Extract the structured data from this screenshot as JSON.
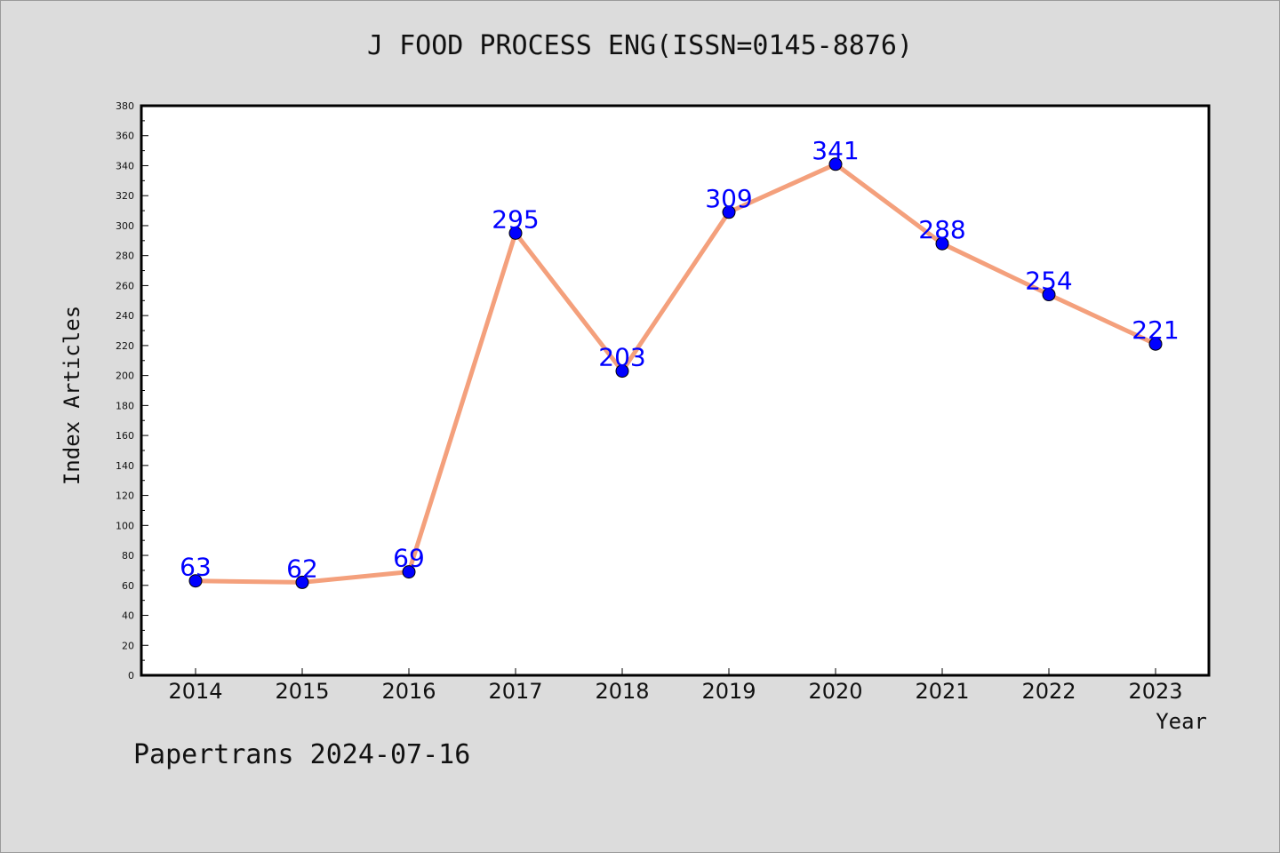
{
  "title": "J FOOD PROCESS ENG(ISSN=0145-8876)",
  "footer": "Papertrans 2024-07-16",
  "chart_data": {
    "type": "line",
    "title": "J FOOD PROCESS ENG(ISSN=0145-8876)",
    "xlabel": "Year",
    "ylabel": "Index Articles",
    "categories": [
      "2014",
      "2015",
      "2016",
      "2017",
      "2018",
      "2019",
      "2020",
      "2021",
      "2022",
      "2023"
    ],
    "series": [
      {
        "values": [
          63,
          62,
          69,
          295,
          203,
          309,
          341,
          288,
          254,
          221
        ]
      }
    ],
    "ylim": [
      0,
      380
    ],
    "yticks": [
      0,
      20,
      40,
      60,
      80,
      100,
      120,
      140,
      160,
      180,
      200,
      220,
      240,
      260,
      280,
      300,
      320,
      340,
      360,
      380
    ],
    "grid": false,
    "legend": "none",
    "colors": {
      "line": "#f4a07c",
      "marker": "#0000ff",
      "label": "#0000ff",
      "plot_bg": "#ffffff",
      "page_bg": "#dcdcdc"
    }
  }
}
